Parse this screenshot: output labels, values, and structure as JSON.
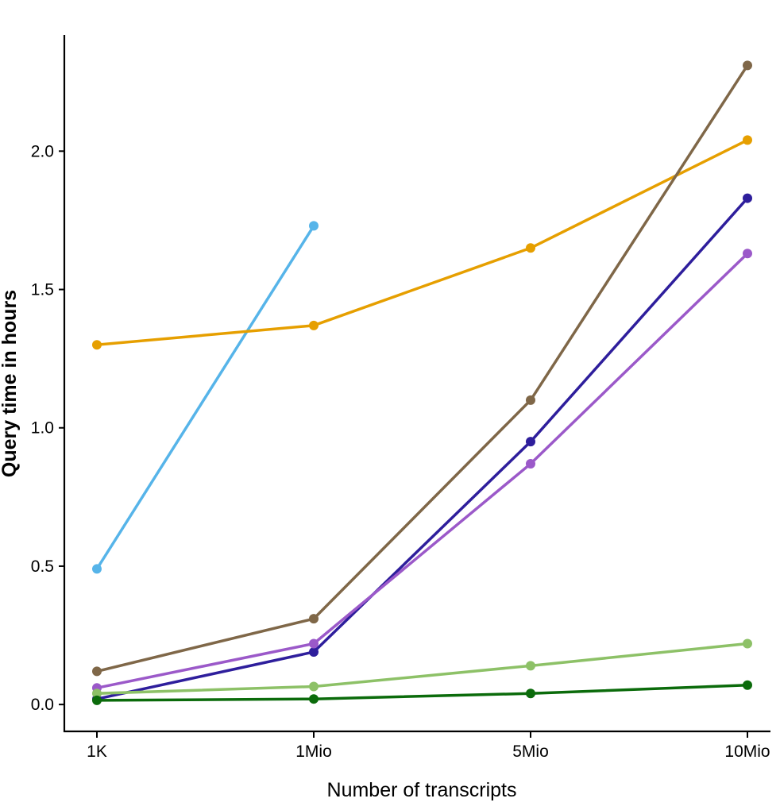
{
  "chart_data": {
    "type": "line",
    "title": "",
    "xlabel": "Number of transcripts",
    "ylabel": "Query time in hours",
    "categories": [
      "1K",
      "1Mio",
      "5Mio",
      "10Mio"
    ],
    "ylim": [
      -0.1,
      2.42
    ],
    "yticks": [
      0.0,
      0.5,
      1.0,
      1.5,
      2.0
    ],
    "ytick_labels": [
      "0.0",
      "0.5",
      "1.0",
      "1.5",
      "2.0"
    ],
    "grid": false,
    "legend": "none",
    "series": [
      {
        "color": "#56B4E9",
        "values": [
          0.49,
          1.73,
          null,
          null
        ]
      },
      {
        "color": "#E69F00",
        "values": [
          1.3,
          1.37,
          1.65,
          2.04
        ]
      },
      {
        "color": "#7F6748",
        "values": [
          0.12,
          0.31,
          1.1,
          2.31
        ]
      },
      {
        "color": "#2E1E9C",
        "values": [
          0.02,
          0.19,
          0.95,
          1.83
        ]
      },
      {
        "color": "#9B59C9",
        "values": [
          0.06,
          0.22,
          0.87,
          1.63
        ]
      },
      {
        "color": "#8DC167",
        "values": [
          0.04,
          0.065,
          0.14,
          0.22
        ]
      },
      {
        "color": "#0B6B0B",
        "values": [
          0.015,
          0.02,
          0.04,
          0.07
        ]
      }
    ]
  }
}
